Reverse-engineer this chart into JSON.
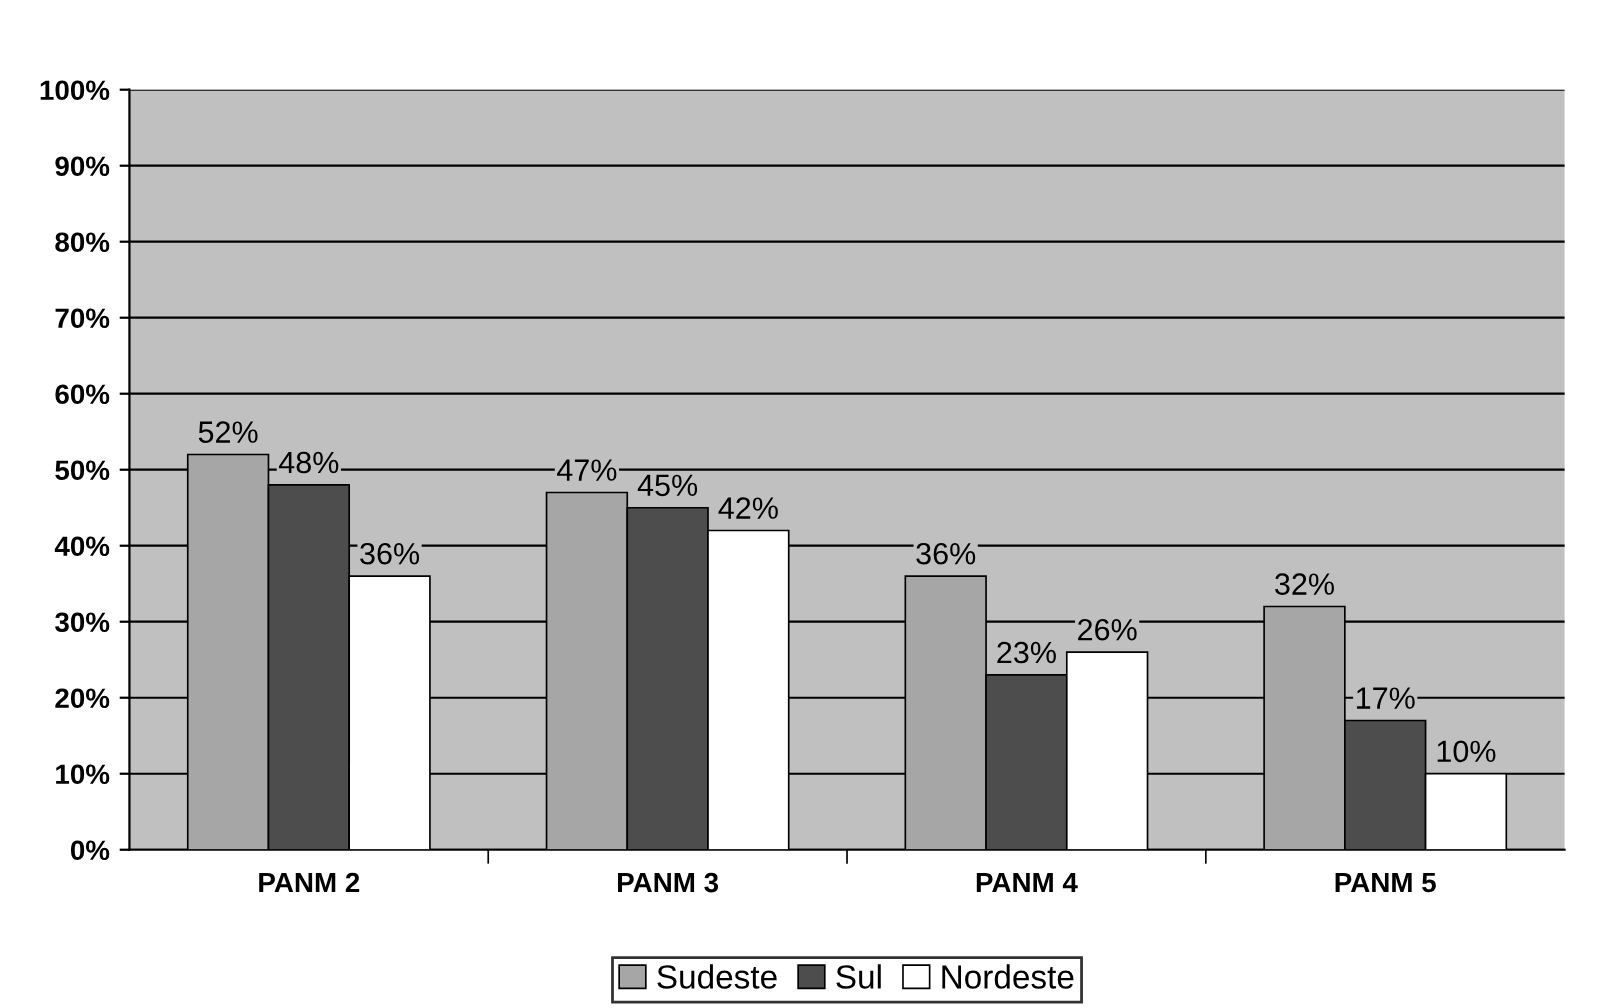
{
  "chart_data": {
    "type": "bar",
    "categories": [
      "PANM 2",
      "PANM 3",
      "PANM 4",
      "PANM 5"
    ],
    "series": [
      {
        "name": "Sudeste",
        "color": "#a6a6a6",
        "values": [
          52,
          47,
          36,
          32
        ],
        "value_labels": [
          "52%",
          "47%",
          "36%",
          "32%"
        ]
      },
      {
        "name": "Sul",
        "color": "#4d4d4d",
        "values": [
          48,
          45,
          23,
          17
        ],
        "value_labels": [
          "48%",
          "45%",
          "23%",
          "17%"
        ]
      },
      {
        "name": "Nordeste",
        "color": "#ffffff",
        "values": [
          36,
          42,
          26,
          10
        ],
        "value_labels": [
          "36%",
          "42%",
          "26%",
          "10%"
        ]
      }
    ],
    "ylim": [
      0,
      100
    ],
    "yticks": [
      {
        "value": 0,
        "label": "0%"
      },
      {
        "value": 10,
        "label": "10%"
      },
      {
        "value": 20,
        "label": "20%"
      },
      {
        "value": 30,
        "label": "30%"
      },
      {
        "value": 40,
        "label": "40%"
      },
      {
        "value": 50,
        "label": "50%"
      },
      {
        "value": 60,
        "label": "60%"
      },
      {
        "value": 70,
        "label": "70%"
      },
      {
        "value": 80,
        "label": "80%"
      },
      {
        "value": 90,
        "label": "90%"
      },
      {
        "value": 100,
        "label": "100%"
      }
    ],
    "grid": "y",
    "legend": "bottom"
  }
}
